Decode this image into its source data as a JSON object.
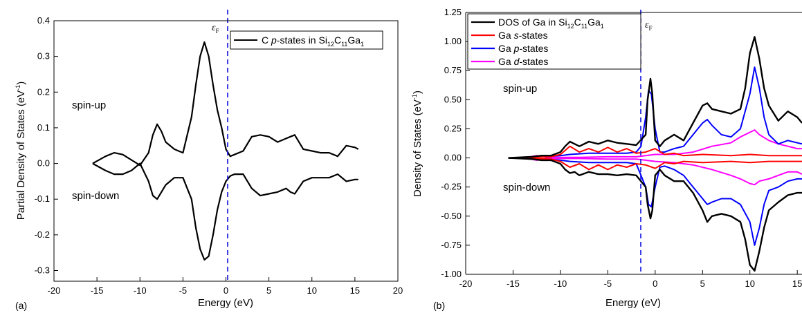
{
  "chart_data": [
    {
      "type": "line",
      "panel_label": "(a)",
      "xlabel": "Energy (eV)",
      "ylabel": "Partial Density of States (eV",
      "ylabel_sup": "-1",
      "ylabel_end": ")",
      "xlim": [
        -20,
        20
      ],
      "ylim": [
        -0.33,
        0.4
      ],
      "xticks": [
        -20,
        -15,
        -10,
        -5,
        0,
        5,
        10,
        15,
        20
      ],
      "yticks": [
        -0.3,
        -0.2,
        -0.1,
        0.0,
        0.1,
        0.2,
        0.3,
        0.4
      ],
      "ytick_labels": [
        "-0.3",
        "-0.2",
        "-0.1",
        "0.0",
        "0.1",
        "0.2",
        "0.3",
        "0.4"
      ],
      "fermi_level": 0,
      "fermi_label": "ε",
      "fermi_sub": "F",
      "annotations": {
        "up": "spin-up",
        "down": "spin-down"
      },
      "legend": {
        "prefix": "C ",
        "italic": "p",
        "suffix": "-states in Si",
        "s1": "12",
        "t1": "C",
        "s2": "11",
        "t2": "Ga",
        "s3": "1"
      },
      "series": [
        {
          "name": "C p-states in Si12C11Ga1",
          "color": "#000000",
          "x": [
            -15.5,
            -14,
            -13,
            -12,
            -11,
            -10,
            -9,
            -8.5,
            -8,
            -7.5,
            -7,
            -6,
            -5,
            -4,
            -3.5,
            -3,
            -2.5,
            -2,
            -1.5,
            -1,
            -0.5,
            0,
            0.5,
            1,
            2,
            3,
            4,
            5,
            6,
            7,
            7.5,
            8,
            9,
            10,
            11,
            12,
            13,
            14,
            15,
            15.4
          ],
          "y": [
            0,
            0.02,
            0.03,
            0.025,
            0.01,
            -0.005,
            0.03,
            0.08,
            0.11,
            0.09,
            0.06,
            0.04,
            0.03,
            0.13,
            0.22,
            0.3,
            0.34,
            0.3,
            0.22,
            0.15,
            0.1,
            0.04,
            0.02,
            0.025,
            0.035,
            0.075,
            0.08,
            0.075,
            0.06,
            0.07,
            0.075,
            0.08,
            0.04,
            0.035,
            0.03,
            0.03,
            0.02,
            0.05,
            0.045,
            0.04
          ]
        },
        {
          "name": "spin-down",
          "color": "#000000",
          "x": [
            -15.5,
            -14,
            -13,
            -12,
            -11,
            -10,
            -9,
            -8.5,
            -8,
            -7.5,
            -7,
            -6,
            -5,
            -4,
            -3.5,
            -3,
            -2.5,
            -2,
            -1.5,
            -1,
            -0.5,
            0,
            0.5,
            1,
            2,
            3,
            4,
            5,
            6,
            7,
            7.5,
            8,
            9,
            10,
            11,
            12,
            13,
            14,
            15,
            15.4
          ],
          "y": [
            0,
            -0.02,
            -0.03,
            -0.03,
            -0.02,
            0.0,
            -0.05,
            -0.09,
            -0.1,
            -0.08,
            -0.06,
            -0.04,
            -0.04,
            -0.1,
            -0.18,
            -0.24,
            -0.27,
            -0.26,
            -0.2,
            -0.13,
            -0.08,
            -0.05,
            -0.035,
            -0.03,
            -0.03,
            -0.07,
            -0.09,
            -0.085,
            -0.08,
            -0.07,
            -0.08,
            -0.085,
            -0.05,
            -0.04,
            -0.04,
            -0.04,
            -0.03,
            -0.05,
            -0.045,
            -0.045
          ]
        }
      ]
    },
    {
      "type": "line",
      "panel_label": "(b)",
      "xlabel": "Energy (eV)",
      "ylabel": "Density of States (eV",
      "ylabel_sup": "-1",
      "ylabel_end": ")",
      "xlim": [
        -20,
        15.5
      ],
      "ylim": [
        -1.0,
        1.25
      ],
      "xticks": [
        -20,
        -15,
        -10,
        -5,
        0,
        5,
        10,
        15
      ],
      "yticks": [
        -1.0,
        -0.75,
        -0.5,
        -0.25,
        0.0,
        0.25,
        0.5,
        0.75,
        1.0,
        1.25
      ],
      "ytick_labels": [
        "-1.00",
        "-0.75",
        "-0.50",
        "-0.25",
        "0.00",
        "0.25",
        "0.50",
        "0.75",
        "1.00",
        "1.25"
      ],
      "fermi_level": -1.5,
      "fermi_label": "ε",
      "fermi_sub": "F",
      "annotations": {
        "up": "spin-up",
        "down": "spin-down"
      },
      "legend": [
        {
          "color": "#000000",
          "text": "DOS of Ga in Si",
          "s1": "12",
          "t1": "C",
          "s2": "11",
          "t2": "Ga",
          "s3": "1"
        },
        {
          "color": "#ff0000",
          "pre": "Ga ",
          "italic": "s",
          "post": "-states"
        },
        {
          "color": "#0000ff",
          "pre": "Ga ",
          "italic": "p",
          "post": "-states"
        },
        {
          "color": "#ff00ff",
          "pre": "Ga ",
          "italic": "d",
          "post": "-states"
        }
      ],
      "series": [
        {
          "name": "DOS of Ga in Si12C11Ga1",
          "color": "#000000",
          "x": [
            -15.5,
            -13,
            -12,
            -11,
            -10,
            -9.5,
            -9,
            -8.5,
            -8,
            -7,
            -6,
            -5,
            -4,
            -3,
            -2,
            -1,
            -0.8,
            -0.5,
            -0.3,
            0,
            0.5,
            1,
            2,
            3,
            4,
            5,
            5.5,
            6,
            7,
            8,
            9,
            9.5,
            10,
            10.5,
            11,
            11.5,
            12,
            13,
            14,
            15,
            15.5
          ],
          "up": [
            0,
            0.01,
            0.02,
            0.02,
            0.05,
            0.1,
            0.14,
            0.12,
            0.1,
            0.14,
            0.12,
            0.15,
            0.13,
            0.12,
            0.11,
            0.2,
            0.5,
            0.68,
            0.55,
            0.15,
            0.1,
            0.15,
            0.2,
            0.15,
            0.3,
            0.45,
            0.47,
            0.42,
            0.4,
            0.38,
            0.42,
            0.6,
            0.9,
            1.04,
            0.85,
            0.6,
            0.45,
            0.32,
            0.4,
            0.35,
            0.3
          ],
          "down": [
            0,
            -0.01,
            -0.02,
            -0.02,
            -0.05,
            -0.1,
            -0.13,
            -0.12,
            -0.15,
            -0.12,
            -0.14,
            -0.14,
            -0.15,
            -0.14,
            -0.15,
            -0.25,
            -0.4,
            -0.52,
            -0.45,
            -0.15,
            -0.1,
            -0.15,
            -0.2,
            -0.2,
            -0.3,
            -0.45,
            -0.55,
            -0.5,
            -0.48,
            -0.5,
            -0.55,
            -0.7,
            -0.92,
            -0.97,
            -0.8,
            -0.6,
            -0.45,
            -0.38,
            -0.32,
            -0.3,
            -0.3
          ]
        },
        {
          "name": "Ga s-states",
          "color": "#ff0000",
          "x": [
            -15.5,
            -13,
            -11,
            -10,
            -9,
            -8,
            -7,
            -6,
            -5,
            -4,
            -3,
            -2,
            -1,
            0,
            1,
            2,
            3,
            5,
            8,
            10,
            12,
            15,
            15.5
          ],
          "up": [
            0,
            0.005,
            0.01,
            0.03,
            0.1,
            0.05,
            0.08,
            0.05,
            0.09,
            0.05,
            0.08,
            0.04,
            0.05,
            0.08,
            0.03,
            0.04,
            0.02,
            0.03,
            0.02,
            0.03,
            0.02,
            0.02,
            0.02
          ],
          "down": [
            0,
            -0.005,
            -0.01,
            -0.03,
            -0.08,
            -0.05,
            -0.1,
            -0.06,
            -0.1,
            -0.06,
            -0.08,
            -0.05,
            -0.06,
            -0.09,
            -0.04,
            -0.05,
            -0.03,
            -0.04,
            -0.03,
            -0.04,
            -0.03,
            -0.03,
            -0.03
          ]
        },
        {
          "name": "Ga p-states",
          "color": "#0000ff",
          "x": [
            -15.5,
            -12,
            -10,
            -9,
            -7,
            -5,
            -3,
            -2,
            -1.5,
            -1,
            -0.7,
            -0.4,
            0,
            0.5,
            1,
            2,
            3,
            4,
            5,
            5.5,
            6,
            7,
            8,
            9,
            10,
            10.5,
            11,
            11.5,
            12,
            13,
            14,
            15,
            15.5
          ],
          "up": [
            0,
            0.01,
            0.02,
            0.03,
            0.04,
            0.04,
            0.04,
            0.05,
            0.1,
            0.35,
            0.58,
            0.55,
            0.25,
            0.05,
            0.05,
            0.08,
            0.1,
            0.2,
            0.3,
            0.33,
            0.28,
            0.2,
            0.18,
            0.25,
            0.55,
            0.78,
            0.6,
            0.35,
            0.2,
            0.12,
            0.15,
            0.13,
            0.12
          ],
          "down": [
            0,
            -0.01,
            -0.02,
            -0.03,
            -0.04,
            -0.04,
            -0.04,
            -0.05,
            -0.15,
            -0.25,
            -0.4,
            -0.42,
            -0.25,
            -0.08,
            -0.07,
            -0.1,
            -0.15,
            -0.25,
            -0.35,
            -0.4,
            -0.38,
            -0.35,
            -0.35,
            -0.4,
            -0.55,
            -0.75,
            -0.6,
            -0.4,
            -0.28,
            -0.25,
            -0.2,
            -0.18,
            -0.18
          ]
        },
        {
          "name": "Ga d-states",
          "color": "#ff00ff",
          "x": [
            -15.5,
            -13.5,
            -12.5,
            -11.5,
            -10,
            -8,
            -5,
            -2,
            -1,
            0,
            2,
            4,
            6,
            8,
            9,
            10,
            10.5,
            11,
            12,
            13,
            14,
            15,
            15.5
          ],
          "up": [
            0,
            0.005,
            0.02,
            0.005,
            0.005,
            0.005,
            0.01,
            0.01,
            0.02,
            0.03,
            0.03,
            0.05,
            0.1,
            0.13,
            0.18,
            0.22,
            0.24,
            0.2,
            0.15,
            0.12,
            0.1,
            0.08,
            0.08
          ],
          "down": [
            0,
            -0.005,
            -0.02,
            -0.005,
            -0.005,
            -0.005,
            -0.01,
            -0.01,
            -0.02,
            -0.03,
            -0.04,
            -0.06,
            -0.1,
            -0.15,
            -0.18,
            -0.22,
            -0.23,
            -0.2,
            -0.18,
            -0.15,
            -0.12,
            -0.12,
            -0.14
          ]
        }
      ]
    }
  ]
}
